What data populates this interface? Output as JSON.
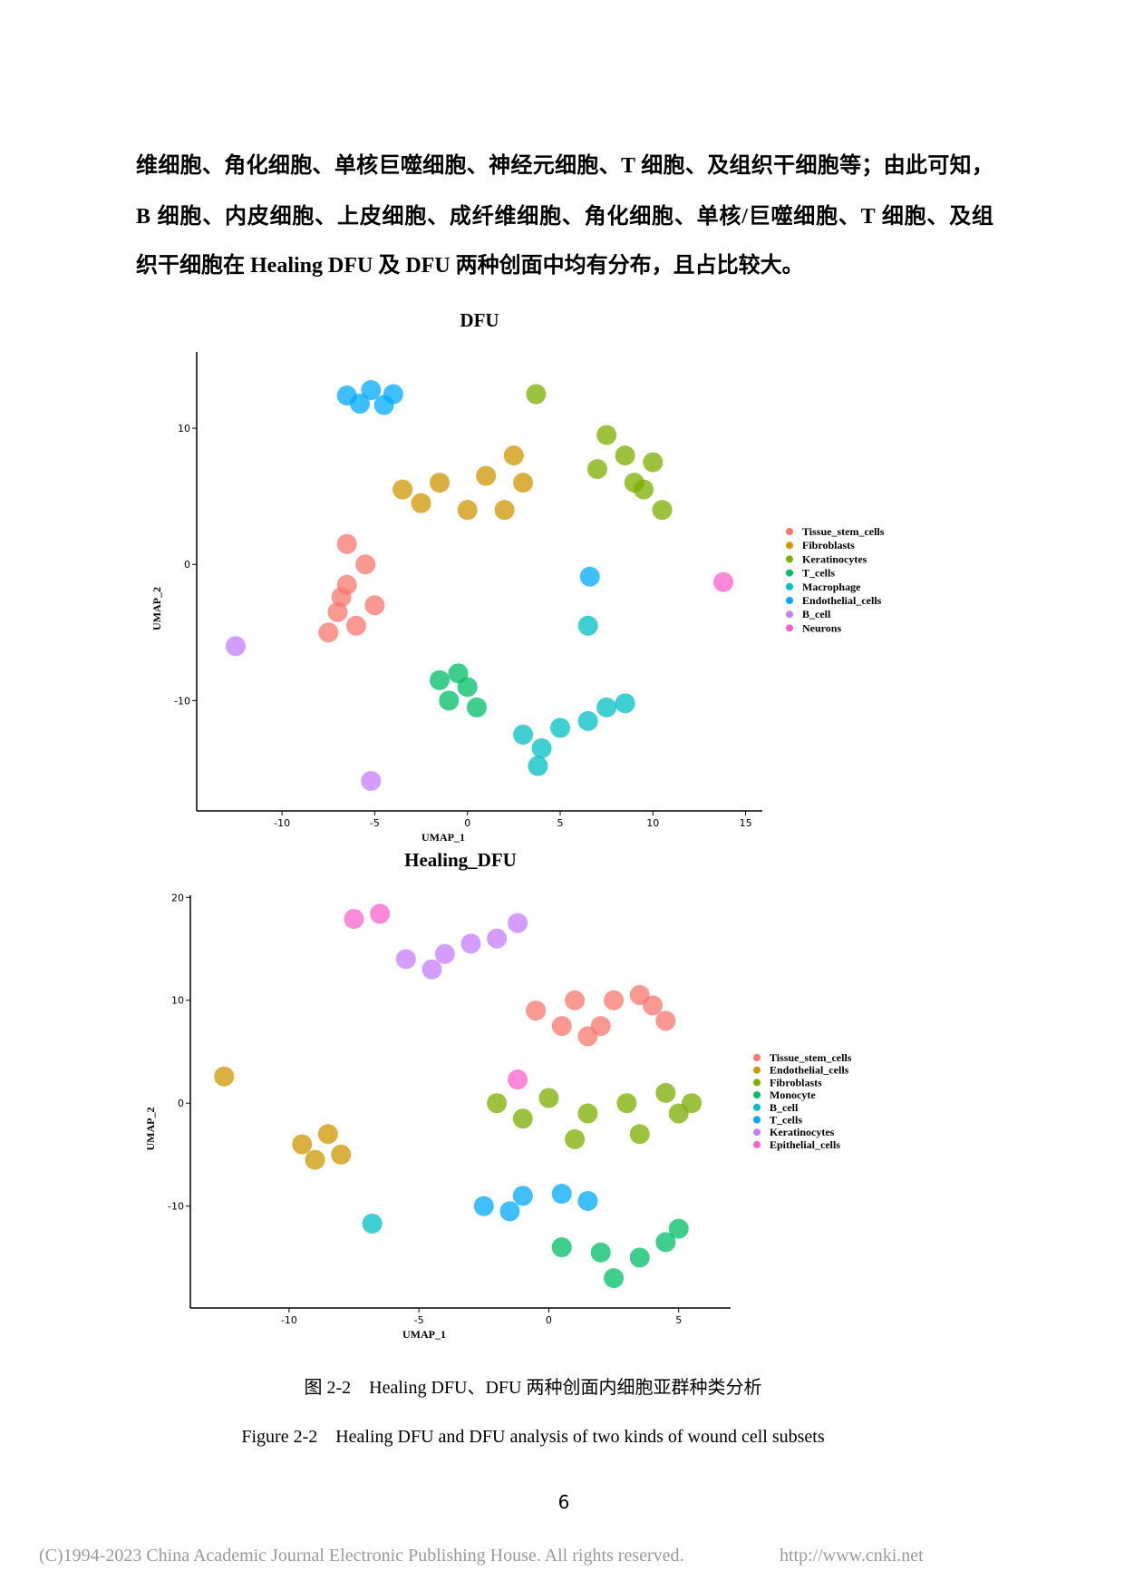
{
  "paragraph": {
    "lines": [
      "维细胞、角化细胞、单核巨噬细胞、神经元细胞、T 细胞、及组织干细胞等；由此可知，",
      "B 细胞、内皮细胞、上皮细胞、成纤维细胞、角化细胞、单核/巨噬细胞、T 细胞、及组",
      "织干细胞在 Healing DFU 及 DFU 两种创面中均有分布，且占比较大。"
    ]
  },
  "chart_data": [
    {
      "type": "scatter",
      "title": "DFU",
      "x_label": "UMAP_1",
      "y_label": "UMAP_2",
      "legend": "right",
      "xlim": [
        -14.6,
        15.9
      ],
      "ylim": [
        -18.1,
        15.6
      ],
      "xticks": [
        -10,
        -5,
        0,
        5,
        10,
        15
      ],
      "yticks": [
        -10,
        0,
        10
      ],
      "series": [
        {
          "name": "Tissue_stem_cells",
          "color": "#F8766D",
          "x": [
            -6.5,
            -5.5,
            -6.5,
            -7,
            -6,
            -7.5,
            -5,
            -6.8
          ],
          "y": [
            1.5,
            0,
            -1.5,
            -3.5,
            -4.5,
            -5,
            -3,
            -2.4
          ]
        },
        {
          "name": "Fibroblasts",
          "color": "#CD9600",
          "x": [
            -3.5,
            -1.5,
            1,
            2.5,
            3,
            0,
            2,
            -2.5
          ],
          "y": [
            5.5,
            6,
            6.5,
            8,
            6,
            4,
            4,
            4.5
          ]
        },
        {
          "name": "Keratinocytes",
          "color": "#7CAE00",
          "x": [
            7.5,
            8.5,
            9,
            10.5,
            7,
            9.5,
            3.7,
            10
          ],
          "y": [
            9.5,
            8,
            6,
            4,
            7,
            5.5,
            12.5,
            7.5
          ]
        },
        {
          "name": "T_cells",
          "color": "#00BE67",
          "x": [
            -1.5,
            0,
            -1,
            0.5,
            -0.5
          ],
          "y": [
            -8.5,
            -9,
            -10,
            -10.5,
            -8
          ]
        },
        {
          "name": "Macrophage",
          "color": "#00BFC4",
          "x": [
            3,
            4,
            5,
            6.5,
            7.5,
            8.5,
            3.8,
            6.5
          ],
          "y": [
            -12.5,
            -13.5,
            -12,
            -11.5,
            -10.5,
            -10.2,
            -14.8,
            -4.5
          ]
        },
        {
          "name": "Endothelial_cells",
          "color": "#00A9FF",
          "x": [
            -6.5,
            -5.2,
            -4,
            -5.8,
            -4.5,
            6.6
          ],
          "y": [
            12.4,
            12.8,
            12.5,
            11.8,
            11.7,
            -0.9
          ]
        },
        {
          "name": "B_cell",
          "color": "#C77CFF",
          "x": [
            -12.5,
            -5.2
          ],
          "y": [
            -6,
            -15.9
          ]
        },
        {
          "name": "Neurons",
          "color": "#FF61CC",
          "x": [
            13.8
          ],
          "y": [
            -1.3
          ]
        }
      ]
    },
    {
      "type": "scatter",
      "title": "Healing_DFU",
      "x_label": "UMAP_1",
      "y_label": "UMAP_2",
      "legend": "right",
      "xlim": [
        -13.8,
        7.0
      ],
      "ylim": [
        -19.9,
        20.2
      ],
      "xticks": [
        -10,
        -5,
        0,
        5
      ],
      "yticks": [
        -10,
        0,
        10,
        20
      ],
      "series": [
        {
          "name": "Tissue_stem_cells",
          "color": "#F8766D",
          "x": [
            -0.5,
            1,
            2.5,
            4,
            4.5,
            2,
            0.5,
            3.5,
            1.5
          ],
          "y": [
            9,
            10,
            10,
            9.5,
            8,
            7.5,
            7.5,
            10.5,
            6.5
          ]
        },
        {
          "name": "Endothelial_cells",
          "color": "#CD9600",
          "x": [
            -9.5,
            -8.5,
            -8,
            -9,
            -12.5
          ],
          "y": [
            -4,
            -3,
            -5,
            -5.5,
            2.6
          ]
        },
        {
          "name": "Fibroblasts",
          "color": "#7CAE00",
          "x": [
            -2,
            0,
            1.5,
            3,
            4.5,
            5,
            3.5,
            1,
            -1,
            5.5
          ],
          "y": [
            0,
            0.5,
            -1,
            0,
            1,
            -1,
            -3,
            -3.5,
            -1.5,
            0
          ]
        },
        {
          "name": "Monocyte",
          "color": "#00BE67",
          "x": [
            0.5,
            2,
            2.5,
            3.5,
            4.5,
            5
          ],
          "y": [
            -14,
            -14.5,
            -17,
            -15,
            -13.5,
            -12.2
          ]
        },
        {
          "name": "B_cell",
          "color": "#00BFC4",
          "x": [
            -6.8
          ],
          "y": [
            -11.7
          ]
        },
        {
          "name": "T_cells",
          "color": "#00A9FF",
          "x": [
            -2.5,
            -1,
            0.5,
            1.5,
            -1.5
          ],
          "y": [
            -10,
            -9,
            -8.8,
            -9.5,
            -10.5
          ]
        },
        {
          "name": "Keratinocytes",
          "color": "#C77CFF",
          "x": [
            -5.5,
            -4,
            -3,
            -2,
            -1.2,
            -4.5
          ],
          "y": [
            14,
            14.5,
            15.5,
            16,
            17.5,
            13
          ]
        },
        {
          "name": "Epithelial_cells",
          "color": "#FF61CC",
          "x": [
            -7.5,
            -6.5,
            -1.2
          ],
          "y": [
            17.9,
            18.4,
            2.3
          ]
        }
      ]
    }
  ],
  "caption": {
    "zh": "图 2-2　Healing DFU、DFU 两种创面内细胞亚群种类分析",
    "en": "Figure 2-2　Healing DFU and DFU analysis of two kinds of wound cell subsets"
  },
  "page_number": "6",
  "footer": {
    "copyright": "(C)1994-2023 China Academic Journal Electronic Publishing House. All rights reserved.",
    "url": "http://www.cnki.net"
  }
}
